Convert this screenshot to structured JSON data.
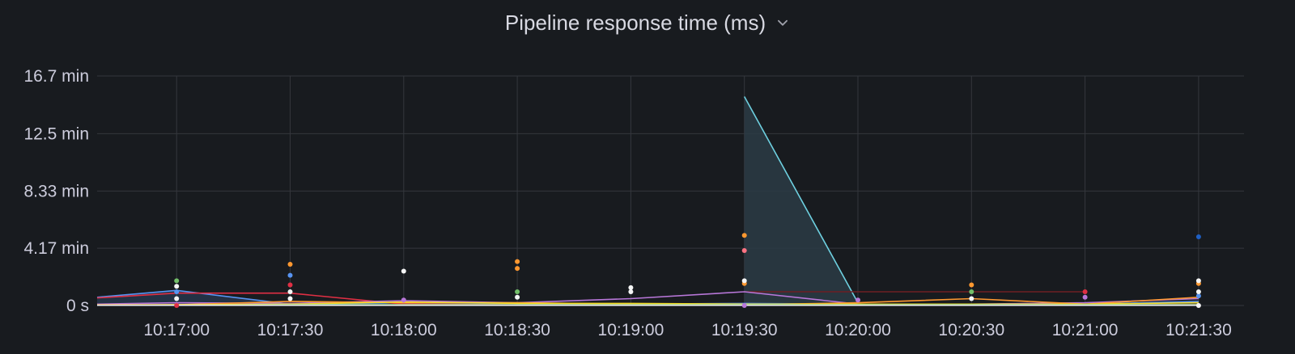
{
  "panel": {
    "title": "Pipeline response time (ms)"
  },
  "icons": {
    "title_menu": "chevron-down-icon"
  },
  "colors": {
    "background": "#181b1f",
    "grid": "#34373d",
    "text": "#ccccdc",
    "spike_fill": "#2b3b45"
  },
  "chart_data": {
    "type": "line",
    "title": "Pipeline response time (ms)",
    "xlabel": "",
    "ylabel": "",
    "y_unit": "min",
    "ylim": [
      0,
      16.7
    ],
    "yticks": [
      {
        "value": 0,
        "label": "0 s"
      },
      {
        "value": 4.17,
        "label": "4.17 min"
      },
      {
        "value": 8.33,
        "label": "8.33 min"
      },
      {
        "value": 12.5,
        "label": "12.5 min"
      },
      {
        "value": 16.7,
        "label": "16.7 min"
      }
    ],
    "x_unit": "seconds since 10:17:00",
    "xlim": [
      -21,
      282
    ],
    "xticks": [
      {
        "value": 0,
        "label": "10:17:00"
      },
      {
        "value": 30,
        "label": "10:17:30"
      },
      {
        "value": 60,
        "label": "10:18:00"
      },
      {
        "value": 90,
        "label": "10:18:30"
      },
      {
        "value": 120,
        "label": "10:19:00"
      },
      {
        "value": 150,
        "label": "10:19:30"
      },
      {
        "value": 180,
        "label": "10:20:00"
      },
      {
        "value": 210,
        "label": "10:20:30"
      },
      {
        "value": 240,
        "label": "10:21:00"
      },
      {
        "value": 270,
        "label": "10:21:30"
      }
    ],
    "series": [
      {
        "name": "cyan",
        "color": "#6ed0e0",
        "fill": true,
        "x": [
          150,
          180
        ],
        "values": [
          15.2,
          0.2
        ],
        "points": []
      },
      {
        "name": "blue",
        "color": "#5794f2",
        "fill": true,
        "x": [
          -21,
          0,
          30,
          60,
          90,
          120,
          150,
          180,
          210,
          240,
          270
        ],
        "values": [
          0.6,
          1.1,
          0.1,
          0.2,
          0.15,
          0.1,
          0.15,
          0.1,
          0.1,
          0.1,
          0.3
        ],
        "points": [
          [
            0,
            1.0
          ],
          [
            30,
            2.2
          ],
          [
            270,
            0.7
          ]
        ]
      },
      {
        "name": "red",
        "color": "#e02f44",
        "fill": false,
        "x": [
          -21,
          0,
          30,
          60,
          90,
          120,
          150,
          180,
          210,
          240,
          270
        ],
        "values": [
          0.55,
          0.9,
          0.9,
          0.1,
          0.05,
          0.05,
          0.05,
          0.05,
          0.05,
          0.05,
          0.05
        ],
        "points": [
          [
            0,
            0.0
          ],
          [
            30,
            1.5
          ],
          [
            240,
            1.0
          ]
        ]
      },
      {
        "name": "dark-red",
        "color": "#6e1f24",
        "fill": false,
        "x": [
          150,
          180,
          210,
          240
        ],
        "values": [
          1.0,
          1.0,
          1.0,
          1.0
        ],
        "points": []
      },
      {
        "name": "magenta",
        "color": "#b877d9",
        "fill": false,
        "x": [
          -21,
          0,
          30,
          60,
          90,
          120,
          150,
          180,
          210,
          240,
          270
        ],
        "values": [
          0.1,
          0.2,
          0.15,
          0.35,
          0.2,
          0.5,
          1.0,
          0.1,
          0.1,
          0.2,
          0.5
        ],
        "points": [
          [
            60,
            0.4
          ],
          [
            150,
            0.0
          ],
          [
            180,
            0.4
          ],
          [
            240,
            0.6
          ]
        ]
      },
      {
        "name": "orange",
        "color": "#ff9830",
        "fill": false,
        "x": [
          -21,
          0,
          30,
          60,
          90,
          120,
          150,
          180,
          210,
          240,
          270
        ],
        "values": [
          0.05,
          0.05,
          0.3,
          0.2,
          0.2,
          0.1,
          0.05,
          0.2,
          0.5,
          0.1,
          0.6
        ],
        "points": [
          [
            30,
            3.0
          ],
          [
            90,
            3.2
          ],
          [
            90,
            2.7
          ],
          [
            150,
            5.1
          ],
          [
            150,
            1.6
          ],
          [
            210,
            1.5
          ],
          [
            270,
            1.6
          ]
        ]
      },
      {
        "name": "yellow",
        "color": "#fade2a",
        "fill": false,
        "x": [
          -21,
          0,
          30,
          60,
          90,
          120,
          150,
          180,
          210,
          240,
          270
        ],
        "values": [
          0.02,
          0.05,
          0.1,
          0.25,
          0.15,
          0.15,
          0.1,
          0.1,
          0.1,
          0.1,
          0.2
        ],
        "points": []
      },
      {
        "name": "green",
        "color": "#73bf69",
        "fill": false,
        "x": [
          -21,
          0,
          30,
          60,
          90,
          120,
          150,
          180,
          210,
          240,
          270
        ],
        "values": [
          0.02,
          0.02,
          0.05,
          0.05,
          0.05,
          0.05,
          0.05,
          0.05,
          0.05,
          0.05,
          0.05
        ],
        "points": [
          [
            0,
            1.8
          ],
          [
            90,
            1.0
          ],
          [
            210,
            1.0
          ]
        ]
      },
      {
        "name": "pink",
        "color": "#ff7383",
        "fill": false,
        "x": [
          150
        ],
        "values": [
          4.0
        ],
        "points": [
          [
            150,
            4.0
          ]
        ]
      },
      {
        "name": "white",
        "color": "#f4f5f5",
        "fill": false,
        "x": [
          -21,
          0,
          30,
          60,
          90,
          120,
          150,
          180,
          210,
          240,
          270
        ],
        "values": [
          0.02,
          0.02,
          0.02,
          0.02,
          0.02,
          0.02,
          0.02,
          0.02,
          0.02,
          0.02,
          0.02
        ],
        "points": [
          [
            0,
            1.4
          ],
          [
            0,
            0.5
          ],
          [
            30,
            1.0
          ],
          [
            30,
            0.5
          ],
          [
            60,
            2.5
          ],
          [
            90,
            0.6
          ],
          [
            120,
            1.3
          ],
          [
            120,
            1.0
          ],
          [
            150,
            1.8
          ],
          [
            210,
            0.5
          ],
          [
            270,
            1.8
          ],
          [
            270,
            1.0
          ],
          [
            270,
            0.0
          ]
        ]
      },
      {
        "name": "dark-blue",
        "color": "#1f60c4",
        "fill": false,
        "x": [
          270
        ],
        "values": [
          5.0
        ],
        "points": [
          [
            270,
            5.0
          ]
        ]
      }
    ]
  }
}
